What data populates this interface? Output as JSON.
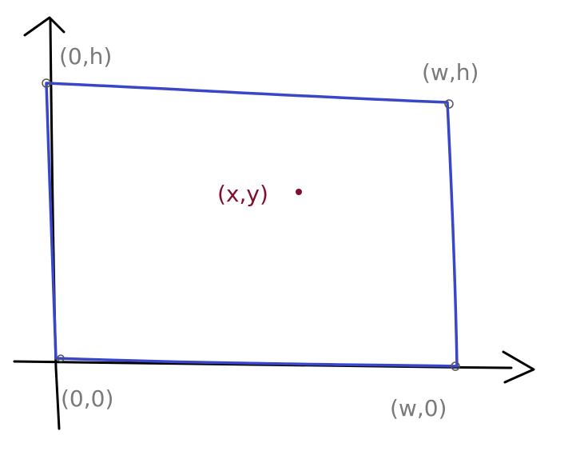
{
  "labels": {
    "top_left": "(0,h)",
    "top_right": "(w,h)",
    "bottom_left": "(0,0)",
    "bottom_right": "(w,0)",
    "center": "(x,y)"
  },
  "colors": {
    "axes": "#000000",
    "rectangle": "#3a46c8",
    "corner_labels": "#7a7a7a",
    "center_label": "#7e0f2d"
  }
}
